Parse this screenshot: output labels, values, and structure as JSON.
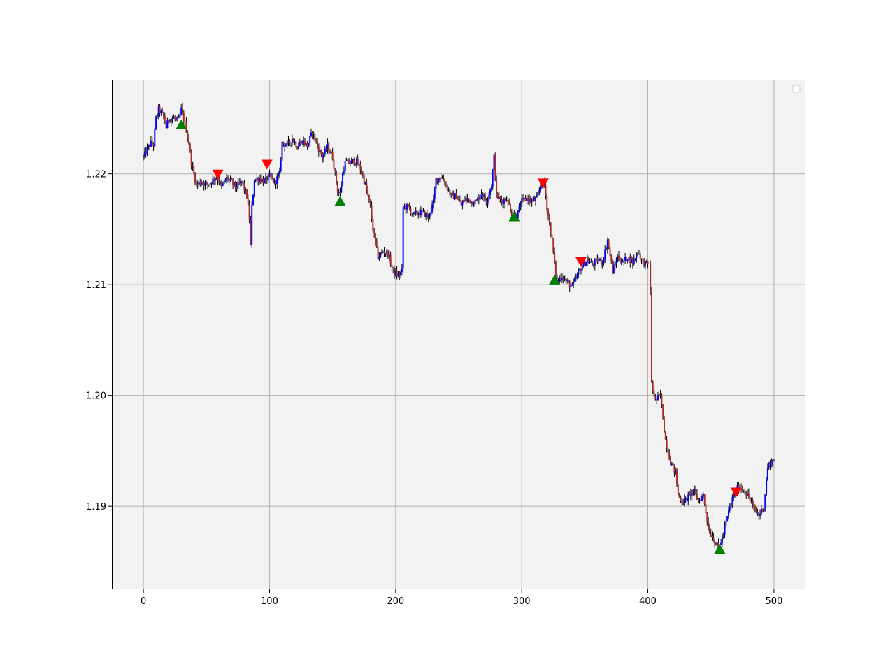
{
  "chart_data": {
    "type": "candlestick",
    "title": "",
    "xlabel": "",
    "ylabel": "",
    "xlim": [
      -25,
      525
    ],
    "ylim": [
      1.1825,
      1.2285
    ],
    "x_ticks": [
      0,
      100,
      200,
      300,
      400,
      500
    ],
    "x_tick_labels": [
      "0",
      "100",
      "200",
      "300",
      "400",
      "500"
    ],
    "y_ticks": [
      1.19,
      1.2,
      1.21,
      1.22
    ],
    "y_tick_labels": [
      "1.19",
      "1.20",
      "1.21",
      "1.22"
    ],
    "grid": true,
    "legend": {
      "placement": "top-right",
      "entries": []
    },
    "colors": {
      "plot_background": "#f2f2f2",
      "up_candle": "#0000ff",
      "down_candle": "#a52a2a",
      "wick": "#000000",
      "buy_marker": "#008000",
      "sell_marker": "#ff0000",
      "grid": "#b0b0b0"
    },
    "close_path": [
      [
        0,
        1.2215
      ],
      [
        3,
        1.2222
      ],
      [
        6,
        1.2228
      ],
      [
        8,
        1.2226
      ],
      [
        10,
        1.225
      ],
      [
        12,
        1.2258
      ],
      [
        16,
        1.2252
      ],
      [
        18,
        1.2242
      ],
      [
        20,
        1.225
      ],
      [
        24,
        1.225
      ],
      [
        28,
        1.2248
      ],
      [
        30,
        1.2258
      ],
      [
        34,
        1.224
      ],
      [
        36,
        1.2228
      ],
      [
        38,
        1.221
      ],
      [
        40,
        1.22
      ],
      [
        42,
        1.219
      ],
      [
        46,
        1.2193
      ],
      [
        50,
        1.219
      ],
      [
        54,
        1.2193
      ],
      [
        58,
        1.2198
      ],
      [
        62,
        1.2188
      ],
      [
        66,
        1.2196
      ],
      [
        70,
        1.2192
      ],
      [
        74,
        1.2188
      ],
      [
        78,
        1.2193
      ],
      [
        82,
        1.218
      ],
      [
        84,
        1.216
      ],
      [
        85,
        1.2135
      ],
      [
        86,
        1.217
      ],
      [
        88,
        1.2195
      ],
      [
        92,
        1.2196
      ],
      [
        96,
        1.2193
      ],
      [
        100,
        1.2198
      ],
      [
        104,
        1.2192
      ],
      [
        108,
        1.22
      ],
      [
        110,
        1.2228
      ],
      [
        114,
        1.2226
      ],
      [
        118,
        1.2232
      ],
      [
        122,
        1.2225
      ],
      [
        126,
        1.223
      ],
      [
        130,
        1.2225
      ],
      [
        134,
        1.2238
      ],
      [
        138,
        1.2225
      ],
      [
        142,
        1.2215
      ],
      [
        146,
        1.2225
      ],
      [
        150,
        1.2215
      ],
      [
        154,
        1.2185
      ],
      [
        156,
        1.2182
      ],
      [
        158,
        1.22
      ],
      [
        160,
        1.221
      ],
      [
        164,
        1.221
      ],
      [
        168,
        1.2212
      ],
      [
        172,
        1.2205
      ],
      [
        176,
        1.219
      ],
      [
        180,
        1.217
      ],
      [
        182,
        1.215
      ],
      [
        186,
        1.2125
      ],
      [
        190,
        1.213
      ],
      [
        194,
        1.2128
      ],
      [
        198,
        1.2112
      ],
      [
        202,
        1.2108
      ],
      [
        205,
        1.2112
      ],
      [
        206,
        1.217
      ],
      [
        210,
        1.217
      ],
      [
        214,
        1.2163
      ],
      [
        218,
        1.2165
      ],
      [
        222,
        1.2165
      ],
      [
        226,
        1.216
      ],
      [
        230,
        1.2175
      ],
      [
        232,
        1.2195
      ],
      [
        236,
        1.2198
      ],
      [
        240,
        1.219
      ],
      [
        244,
        1.218
      ],
      [
        248,
        1.218
      ],
      [
        252,
        1.2172
      ],
      [
        256,
        1.2178
      ],
      [
        260,
        1.2175
      ],
      [
        264,
        1.2175
      ],
      [
        268,
        1.2183
      ],
      [
        272,
        1.2175
      ],
      [
        276,
        1.219
      ],
      [
        278,
        1.2215
      ],
      [
        280,
        1.218
      ],
      [
        284,
        1.2175
      ],
      [
        288,
        1.2178
      ],
      [
        292,
        1.2165
      ],
      [
        296,
        1.2162
      ],
      [
        300,
        1.2175
      ],
      [
        304,
        1.2178
      ],
      [
        308,
        1.2175
      ],
      [
        312,
        1.2178
      ],
      [
        316,
        1.2192
      ],
      [
        318,
        1.219
      ],
      [
        320,
        1.217
      ],
      [
        322,
        1.2155
      ],
      [
        324,
        1.214
      ],
      [
        326,
        1.2118
      ],
      [
        328,
        1.2102
      ],
      [
        332,
        1.2108
      ],
      [
        336,
        1.2102
      ],
      [
        340,
        1.2098
      ],
      [
        344,
        1.2108
      ],
      [
        348,
        1.2118
      ],
      [
        352,
        1.2122
      ],
      [
        356,
        1.2118
      ],
      [
        360,
        1.2122
      ],
      [
        364,
        1.212
      ],
      [
        368,
        1.214
      ],
      [
        372,
        1.2112
      ],
      [
        376,
        1.2125
      ],
      [
        380,
        1.212
      ],
      [
        384,
        1.2125
      ],
      [
        388,
        1.212
      ],
      [
        392,
        1.213
      ],
      [
        396,
        1.212
      ],
      [
        400,
        1.2118
      ],
      [
        402,
        1.2095
      ],
      [
        403,
        1.201
      ],
      [
        406,
        1.1995
      ],
      [
        410,
        1.2
      ],
      [
        414,
        1.196
      ],
      [
        418,
        1.194
      ],
      [
        422,
        1.193
      ],
      [
        424,
        1.191
      ],
      [
        428,
        1.1903
      ],
      [
        432,
        1.1908
      ],
      [
        436,
        1.1915
      ],
      [
        440,
        1.1905
      ],
      [
        444,
        1.191
      ],
      [
        448,
        1.188
      ],
      [
        452,
        1.187
      ],
      [
        456,
        1.1862
      ],
      [
        460,
        1.1875
      ],
      [
        464,
        1.1895
      ],
      [
        468,
        1.191
      ],
      [
        472,
        1.1918
      ],
      [
        476,
        1.1915
      ],
      [
        480,
        1.1908
      ],
      [
        484,
        1.1898
      ],
      [
        488,
        1.1892
      ],
      [
        492,
        1.19
      ],
      [
        495,
        1.1935
      ],
      [
        498,
        1.194
      ],
      [
        500,
        1.1942
      ]
    ],
    "gaps": [
      [
        400,
        402
      ]
    ],
    "buy_signals": [
      {
        "x": 30,
        "y": 1.2244
      },
      {
        "x": 156,
        "y": 1.2175
      },
      {
        "x": 294,
        "y": 1.2161
      },
      {
        "x": 326,
        "y": 1.2104
      },
      {
        "x": 457,
        "y": 1.1861
      }
    ],
    "sell_signals": [
      {
        "x": 59,
        "y": 1.22
      },
      {
        "x": 98,
        "y": 1.2209
      },
      {
        "x": 317,
        "y": 1.2192
      },
      {
        "x": 347,
        "y": 1.2121
      },
      {
        "x": 470,
        "y": 1.1913
      }
    ]
  }
}
